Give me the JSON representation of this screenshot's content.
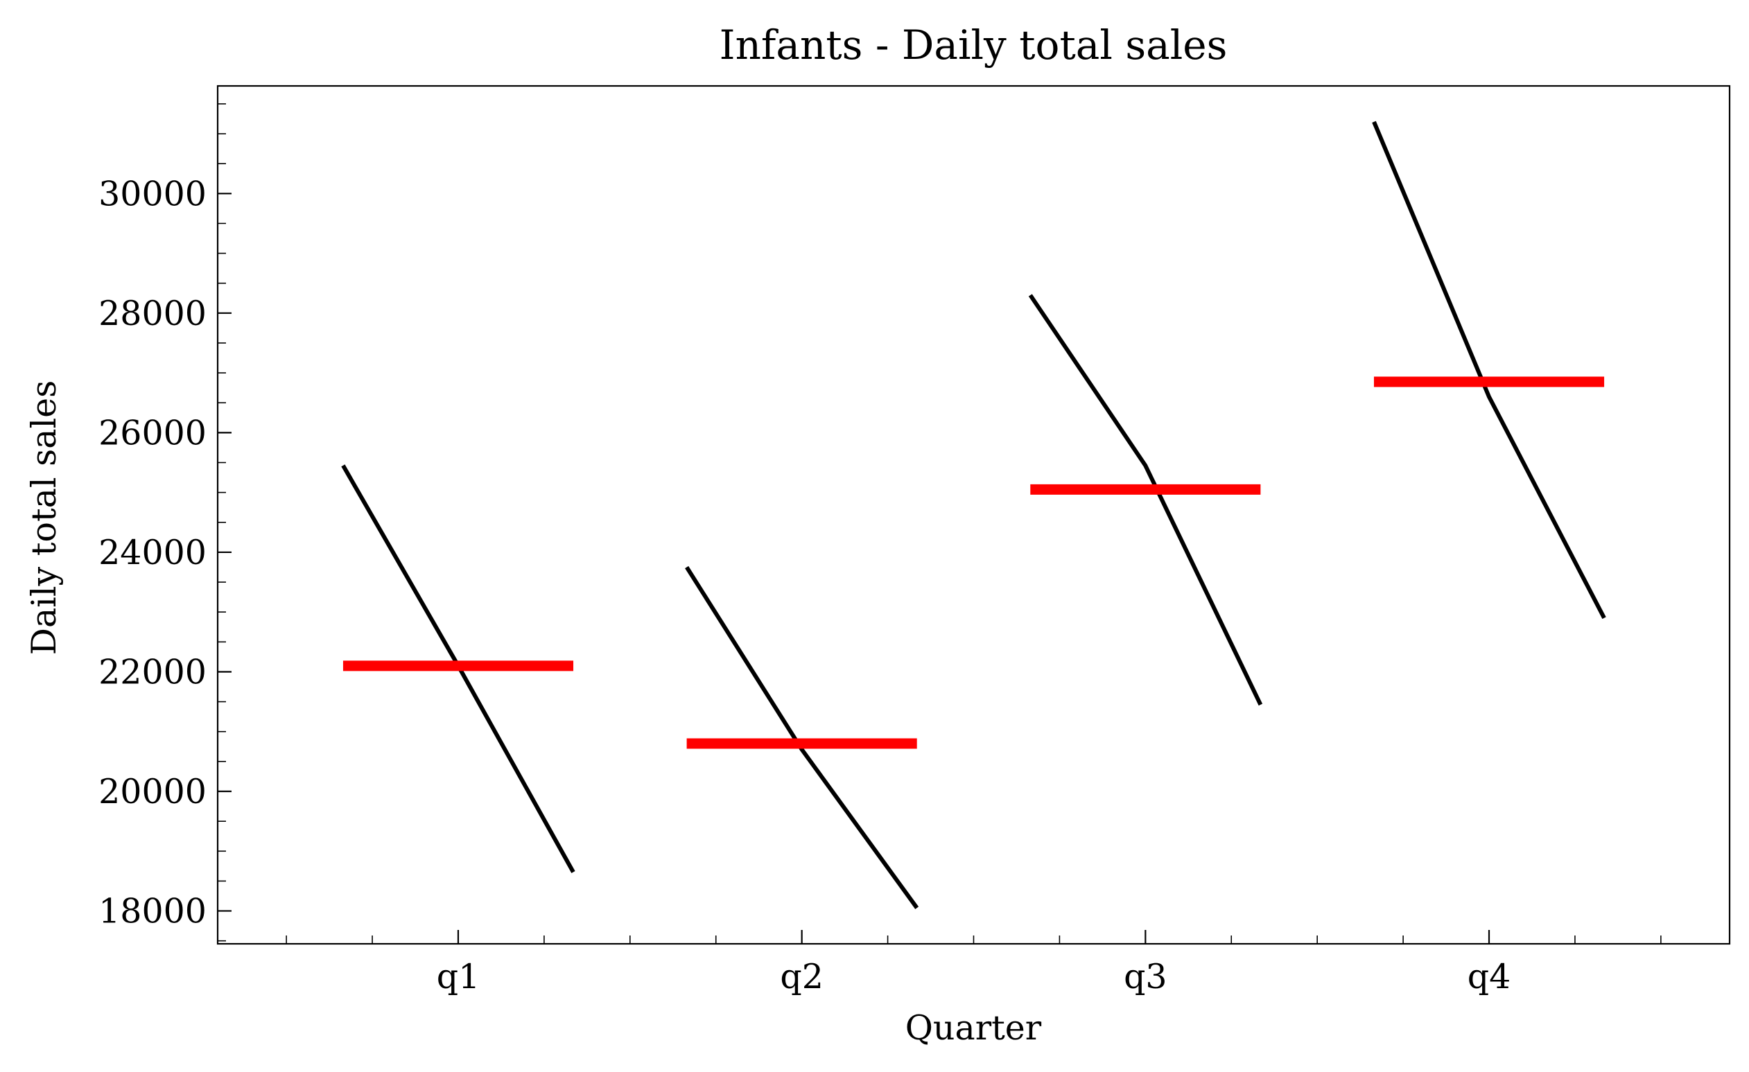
{
  "chart_data": {
    "type": "line",
    "title": "Infants - Daily total sales",
    "xlabel": "Quarter",
    "ylabel": "Daily total sales",
    "categories": [
      "q1",
      "q2",
      "q3",
      "q4"
    ],
    "ylim": [
      17450,
      31800
    ],
    "yticks": [
      18000,
      20000,
      22000,
      24000,
      26000,
      28000,
      30000
    ],
    "y_tick_labels": [
      "18000",
      "20000",
      "22000",
      "24000",
      "26000",
      "28000",
      "30000"
    ],
    "grid": false,
    "series": [
      {
        "values": [
          [
            25450,
            22100,
            18650
          ],
          [
            23750,
            20700,
            18050
          ],
          [
            28300,
            25450,
            21450
          ],
          [
            31200,
            26600,
            22900
          ]
        ]
      }
    ],
    "means": [
      22100,
      20800,
      25050,
      26850
    ],
    "colors": {
      "series": "#000000",
      "mean": "#ff0000",
      "frame": "#000000"
    }
  }
}
